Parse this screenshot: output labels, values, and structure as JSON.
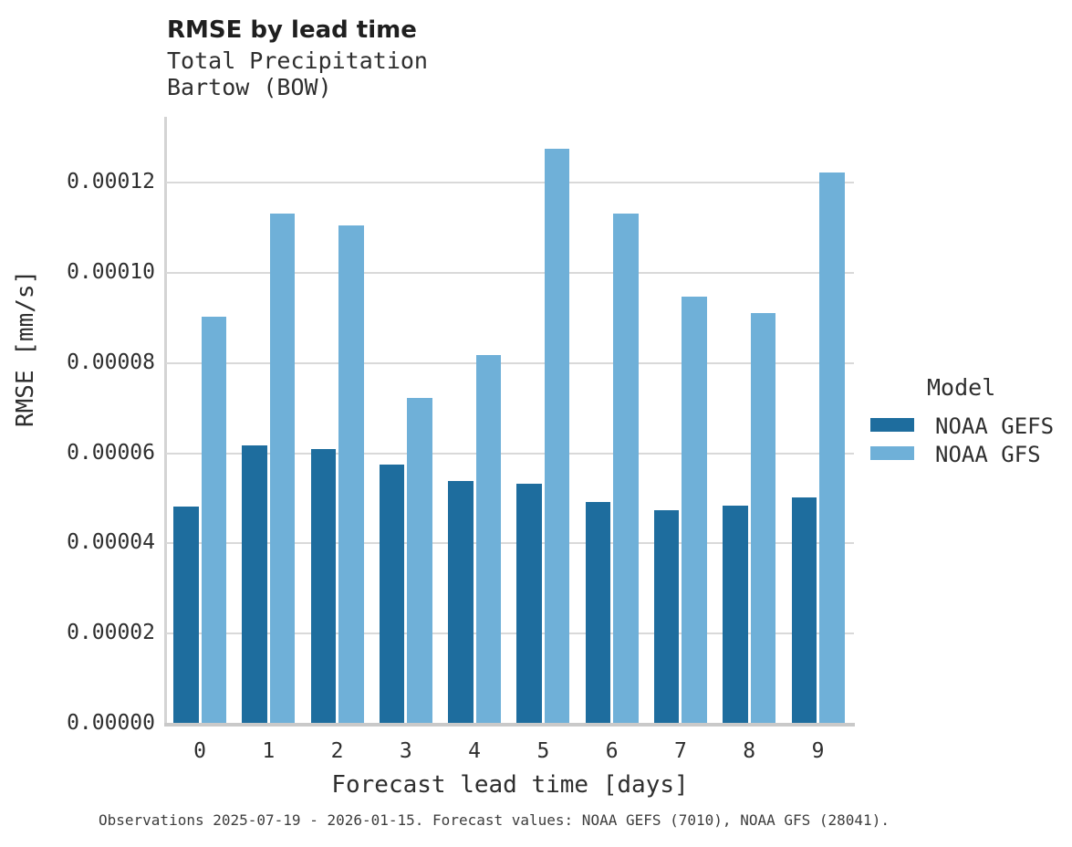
{
  "header": {
    "title": "RMSE by lead time",
    "subtitle_line1": "Total Precipitation",
    "subtitle_line2": "Bartow (BOW)"
  },
  "chart_data": {
    "type": "bar",
    "title": "RMSE by lead time",
    "subtitle": [
      "Total Precipitation",
      "Bartow (BOW)"
    ],
    "categories": [
      "0",
      "1",
      "2",
      "3",
      "4",
      "5",
      "6",
      "7",
      "8",
      "9"
    ],
    "series": [
      {
        "name": "NOAA GEFS",
        "color": "#1e6d9e",
        "values": [
          4.83e-05,
          6.17e-05,
          6.1e-05,
          5.76e-05,
          5.38e-05,
          5.33e-05,
          4.92e-05,
          4.73e-05,
          4.85e-05,
          5.03e-05
        ]
      },
      {
        "name": "NOAA GFS",
        "color": "#6fb0d8",
        "values": [
          9.03e-05,
          0.0001133,
          0.0001106,
          7.23e-05,
          8.18e-05,
          0.0001276,
          0.0001133,
          9.48e-05,
          9.12e-05,
          0.0001224
        ]
      }
    ],
    "xlabel": "Forecast lead time [days]",
    "ylabel": "RMSE [mm/s]",
    "ylim": [
      0,
      0.00013468
    ],
    "yticks": [
      0,
      2e-05,
      4e-05,
      6e-05,
      8e-05,
      0.0001,
      0.00012
    ],
    "ytick_labels": [
      "0.00000",
      "0.00002",
      "0.00004",
      "0.00006",
      "0.00008",
      "0.00010",
      "0.00012"
    ],
    "legend_title": "Model",
    "legend_position": "right",
    "grid": true
  },
  "legend": {
    "title": "Model",
    "entries": [
      "NOAA GEFS",
      "NOAA GFS"
    ]
  },
  "footer": {
    "caption": "Observations 2025-07-19 - 2026-01-15. Forecast values: NOAA GEFS (7010), NOAA GFS (28041)."
  },
  "colors": {
    "gefs_bar": "#1e6d9e",
    "gfs_bar": "#6fb0d8",
    "gridline": "#d9d9d9",
    "axis_spine": "#c9c9c9",
    "text": "#2f2f2f",
    "caption_text": "#3d3d3d"
  }
}
